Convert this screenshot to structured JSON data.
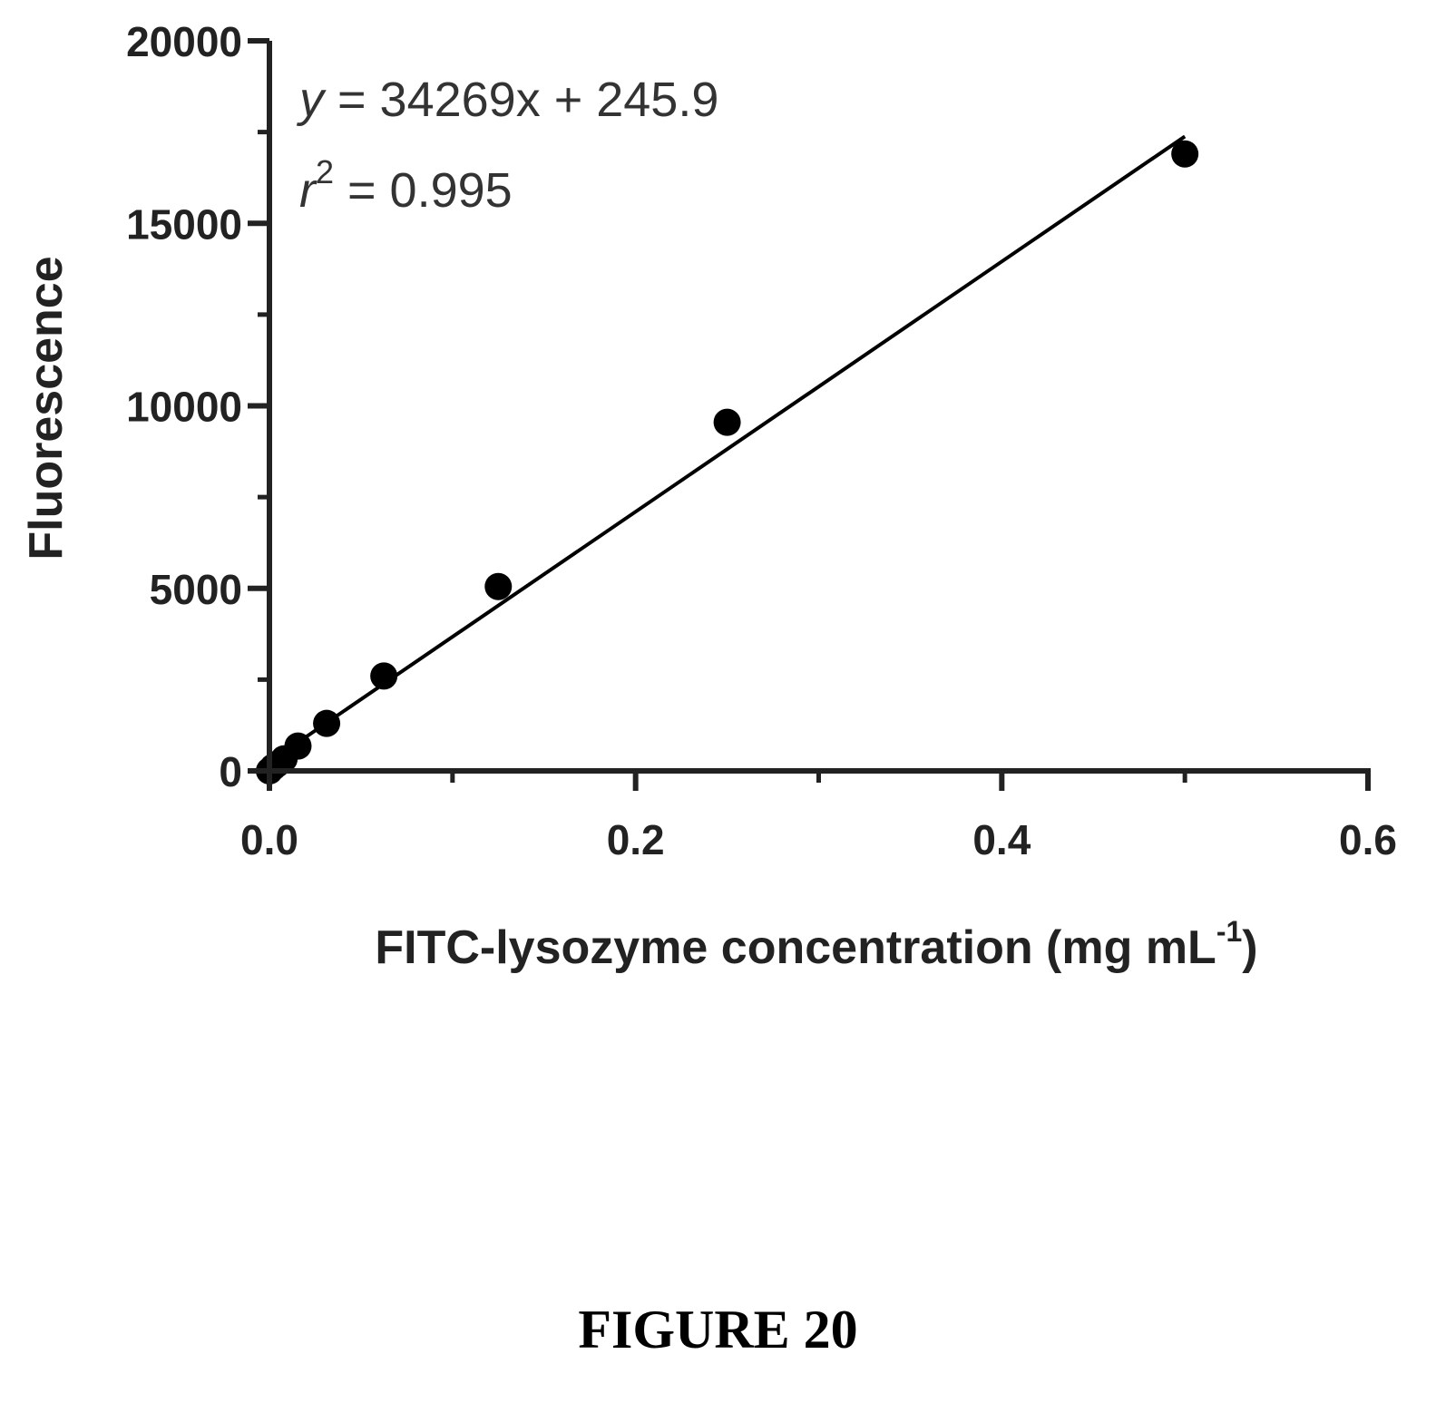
{
  "chart_data": {
    "type": "scatter",
    "xlabel": "FITC-lysozyme concentration (mg mL",
    "xlabel_superscript": "-1",
    "xlabel_close": ")",
    "ylabel": "Fluorescence",
    "xlim": [
      0.0,
      0.6
    ],
    "ylim": [
      0,
      20000
    ],
    "x_ticks": [
      {
        "value": 0.0,
        "label": "0.0"
      },
      {
        "value": 0.2,
        "label": "0.2"
      },
      {
        "value": 0.4,
        "label": "0.4"
      },
      {
        "value": 0.6,
        "label": "0.6"
      }
    ],
    "x_minor_ticks": [
      0.1,
      0.3,
      0.5
    ],
    "y_ticks": [
      {
        "value": 0,
        "label": "0"
      },
      {
        "value": 5000,
        "label": "5000"
      },
      {
        "value": 10000,
        "label": "10000"
      },
      {
        "value": 15000,
        "label": "15000"
      },
      {
        "value": 20000,
        "label": "20000"
      }
    ],
    "y_minor_ticks": [
      2500,
      7500,
      12500,
      17500
    ],
    "grid": false,
    "series": [
      {
        "points": [
          {
            "x": 0.0,
            "y": 0
          },
          {
            "x": 0.002,
            "y": 100
          },
          {
            "x": 0.004,
            "y": 180
          },
          {
            "x": 0.008,
            "y": 330
          },
          {
            "x": 0.0156,
            "y": 680
          },
          {
            "x": 0.03125,
            "y": 1300
          },
          {
            "x": 0.0625,
            "y": 2600
          },
          {
            "x": 0.125,
            "y": 5050
          },
          {
            "x": 0.25,
            "y": 9550
          },
          {
            "x": 0.5,
            "y": 16900
          }
        ],
        "marker_color": "#000000"
      }
    ],
    "fit_line": {
      "slope": 34269,
      "intercept": 245.9,
      "x_range": [
        0.0,
        0.5
      ],
      "color": "#000000"
    },
    "annotations": {
      "equation_var": "y",
      "equation_rest": " = 34269x + 245.9",
      "r2_var": "r",
      "r2_exp": "2",
      "r2_rest": " = 0.995"
    }
  },
  "caption": "FIGURE 20"
}
